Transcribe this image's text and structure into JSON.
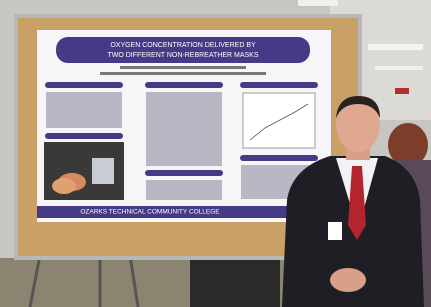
{
  "poster": {
    "title_lines": [
      "OXYGEN CONCENTRATION DELIVERED BY",
      "TWO DIFFERENT NON-REBREATHER MASKS"
    ],
    "footer": "OZARKS TECHNICAL COMMUNITY COLLEGE"
  }
}
